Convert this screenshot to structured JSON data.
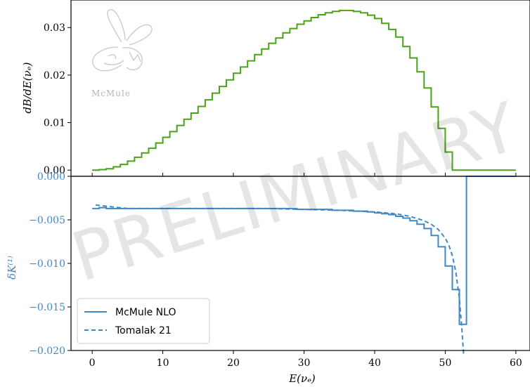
{
  "watermark": "PRELIMINARY",
  "logo": {
    "text": "McMule"
  },
  "chart_data": [
    {
      "type": "line",
      "panel": "top",
      "xlabel": "",
      "ylabel": "dB/dE(νₑ)",
      "xlim": [
        -3,
        62
      ],
      "ylim": [
        -0.0013,
        0.0358
      ],
      "yticks": [
        0.0,
        0.01,
        0.02,
        0.03
      ],
      "ytick_labels": [
        "0.00",
        "0.01",
        "0.02",
        "0.03"
      ],
      "grid": false,
      "series": [
        {
          "style": "step",
          "color": "#4aa217",
          "x": [
            0,
            1,
            2,
            3,
            4,
            5,
            6,
            7,
            8,
            9,
            10,
            11,
            12,
            13,
            14,
            15,
            16,
            17,
            18,
            19,
            20,
            21,
            22,
            23,
            24,
            25,
            26,
            27,
            28,
            29,
            30,
            31,
            32,
            33,
            34,
            35,
            36,
            37,
            38,
            39,
            40,
            41,
            42,
            43,
            44,
            45,
            46,
            47,
            48,
            49,
            50,
            51,
            52,
            53,
            54,
            55,
            56,
            57,
            58,
            59
          ],
          "values": [
            0.0,
            0.0001,
            0.0003,
            0.0007,
            0.0012,
            0.0019,
            0.0027,
            0.0036,
            0.0046,
            0.0057,
            0.0069,
            0.0081,
            0.0094,
            0.0107,
            0.012,
            0.0134,
            0.0148,
            0.0162,
            0.0176,
            0.019,
            0.0204,
            0.0217,
            0.023,
            0.0243,
            0.0255,
            0.0267,
            0.0278,
            0.0289,
            0.0298,
            0.0307,
            0.0314,
            0.0321,
            0.0327,
            0.0331,
            0.0334,
            0.0336,
            0.0336,
            0.0334,
            0.0331,
            0.0326,
            0.0319,
            0.0309,
            0.0296,
            0.028,
            0.026,
            0.0236,
            0.0207,
            0.0173,
            0.0133,
            0.0088,
            0.0038,
            0.0,
            0.0,
            0.0,
            0.0,
            0.0,
            0.0,
            0.0,
            0.0,
            0.0
          ]
        }
      ]
    },
    {
      "type": "line",
      "panel": "bottom",
      "xlabel": "E(νₑ)",
      "ylabel": "δK⁽¹⁾",
      "xlim": [
        -3,
        62
      ],
      "ylim": [
        -0.02,
        0.0
      ],
      "xticks": [
        0,
        10,
        20,
        30,
        40,
        50,
        60
      ],
      "xtick_labels": [
        "0",
        "10",
        "20",
        "30",
        "40",
        "50",
        "60"
      ],
      "yticks": [
        0.0,
        -0.005,
        -0.01,
        -0.015,
        -0.02
      ],
      "ytick_labels": [
        "0.000",
        "−0.005",
        "−0.010",
        "−0.015",
        "−0.020"
      ],
      "legend_position": "bottom-left",
      "grid": false,
      "series": [
        {
          "name": "McMule NLO",
          "style": "step",
          "color": "#3f88c5",
          "x": [
            0,
            1,
            2,
            3,
            4,
            5,
            6,
            7,
            8,
            9,
            10,
            11,
            12,
            13,
            14,
            15,
            16,
            17,
            18,
            19,
            20,
            21,
            22,
            23,
            24,
            25,
            26,
            27,
            28,
            29,
            30,
            31,
            32,
            33,
            34,
            35,
            36,
            37,
            38,
            39,
            40,
            41,
            42,
            43,
            44,
            45,
            46,
            47,
            48,
            49,
            50,
            51,
            52,
            53,
            54,
            55,
            56,
            57,
            58,
            59
          ],
          "values": [
            -0.0037,
            -0.0036,
            -0.0037,
            -0.0037,
            -0.0037,
            -0.0037,
            -0.0037,
            -0.0037,
            -0.0037,
            -0.0037,
            -0.0037,
            -0.0037,
            -0.0037,
            -0.0037,
            -0.0037,
            -0.0037,
            -0.0037,
            -0.0037,
            -0.0037,
            -0.0037,
            -0.0037,
            -0.0037,
            -0.0037,
            -0.0037,
            -0.0037,
            -0.0037,
            -0.0037,
            -0.0037,
            -0.0037,
            -0.0038,
            -0.0038,
            -0.0038,
            -0.0038,
            -0.0038,
            -0.0039,
            -0.0039,
            -0.0039,
            -0.004,
            -0.004,
            -0.0041,
            -0.0042,
            -0.0043,
            -0.0044,
            -0.0046,
            -0.0048,
            -0.0051,
            -0.0055,
            -0.006,
            -0.0068,
            -0.0081,
            -0.0103,
            -0.013,
            -0.017,
            0.0,
            0.0,
            0.0,
            0.0,
            0.0,
            0.0,
            0.0
          ]
        },
        {
          "name": "Tomalak 21",
          "style": "dashed",
          "color": "#3f88c5",
          "x": [
            0.5,
            5,
            10,
            15,
            20,
            25,
            30,
            35,
            40,
            43,
            45,
            47,
            48,
            49,
            50,
            50.5,
            51,
            51.5,
            52,
            52.3,
            52.6
          ],
          "values": [
            -0.0033,
            -0.0037,
            -0.0037,
            -0.0037,
            -0.0037,
            -0.0037,
            -0.0038,
            -0.0039,
            -0.0041,
            -0.0043,
            -0.0046,
            -0.0051,
            -0.0055,
            -0.0061,
            -0.0071,
            -0.0079,
            -0.0091,
            -0.011,
            -0.014,
            -0.017,
            -0.0205
          ]
        }
      ]
    }
  ]
}
